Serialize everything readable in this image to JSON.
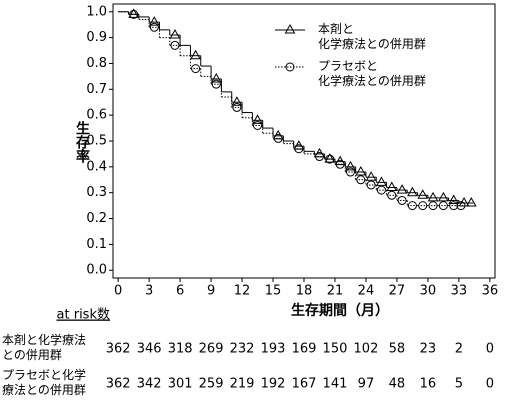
{
  "chart_data": {
    "type": "line",
    "step": true,
    "xlabel": "生存期間（月）",
    "ylabel": "生存率",
    "x": [
      0,
      1,
      2,
      3,
      4,
      5,
      6,
      7,
      8,
      9,
      10,
      11,
      12,
      13,
      14,
      15,
      16,
      17,
      18,
      19,
      20,
      21,
      22,
      23,
      24,
      25,
      26,
      27,
      28,
      29,
      30,
      31,
      32,
      33,
      34
    ],
    "series": [
      {
        "name": "本剤と\n化学療法との併用群",
        "color": "#000000",
        "marker": "triangle",
        "dash": "solid",
        "values": [
          1.0,
          0.99,
          0.98,
          0.96,
          0.93,
          0.91,
          0.87,
          0.83,
          0.79,
          0.74,
          0.69,
          0.65,
          0.61,
          0.58,
          0.55,
          0.52,
          0.5,
          0.48,
          0.46,
          0.45,
          0.43,
          0.42,
          0.4,
          0.38,
          0.36,
          0.34,
          0.32,
          0.31,
          0.3,
          0.29,
          0.28,
          0.28,
          0.27,
          0.26,
          0.26
        ]
      },
      {
        "name": "プラセボと\n化学療法との併用群",
        "color": "#000000",
        "marker": "circle",
        "dash": "dotted",
        "values": [
          1.0,
          0.99,
          0.97,
          0.94,
          0.9,
          0.87,
          0.83,
          0.78,
          0.75,
          0.72,
          0.67,
          0.63,
          0.59,
          0.56,
          0.53,
          0.51,
          0.49,
          0.47,
          0.45,
          0.44,
          0.43,
          0.41,
          0.38,
          0.35,
          0.33,
          0.31,
          0.29,
          0.27,
          0.25,
          0.25,
          0.25,
          0.25,
          0.25,
          0.25,
          null
        ]
      }
    ],
    "xlim": [
      -0.5,
      36.5
    ],
    "ylim": [
      -0.03,
      1.03
    ],
    "xticks": [
      0,
      3,
      6,
      9,
      12,
      15,
      18,
      21,
      24,
      27,
      30,
      33,
      36
    ],
    "yticks": [
      {
        "value": 0,
        "label": "0.0"
      },
      {
        "value": 0.1,
        "label": "0.1"
      },
      {
        "value": 0.2,
        "label": "0.2"
      },
      {
        "value": 0.3,
        "label": "0.3"
      },
      {
        "value": 0.4,
        "label": "0.4"
      },
      {
        "value": 0.5,
        "label": "0.5"
      },
      {
        "value": 0.6,
        "label": "0.6"
      },
      {
        "value": 0.7,
        "label": "0.7"
      },
      {
        "value": 0.8,
        "label": "0.8"
      },
      {
        "value": 0.9,
        "label": "0.9"
      },
      {
        "value": 1,
        "label": "1.0"
      }
    ],
    "at_risk": {
      "title": "at risk数",
      "rows": [
        {
          "label": "本剤と化学療法\nとの併用群",
          "values": [
            362,
            346,
            318,
            269,
            232,
            193,
            169,
            150,
            102,
            58,
            23,
            2,
            0
          ]
        },
        {
          "label": "プラセボと化学\n療法との併用群",
          "values": [
            362,
            342,
            301,
            259,
            219,
            192,
            167,
            141,
            97,
            48,
            16,
            5,
            0
          ]
        }
      ]
    }
  }
}
